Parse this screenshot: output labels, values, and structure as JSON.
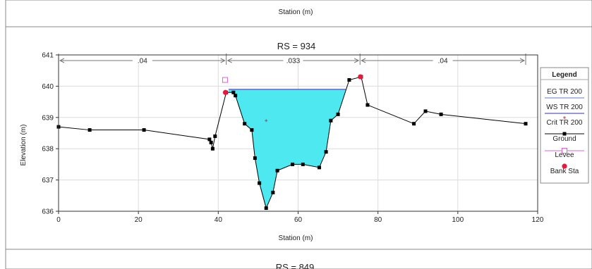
{
  "top_panel": {
    "xlabel": "Station (m)"
  },
  "chart_data": {
    "type": "line",
    "title": "RS = 934",
    "xlabel": "Station (m)",
    "ylabel": "Elevation (m)",
    "xlim": [
      0,
      120
    ],
    "ylim": [
      636,
      641
    ],
    "xticks": [
      0,
      20,
      40,
      60,
      80,
      100,
      120
    ],
    "yticks": [
      636,
      637,
      638,
      639,
      640,
      641
    ],
    "grid": true,
    "legend_position": "right",
    "manning_n": [
      {
        "label": ".04",
        "from": 0,
        "to": 42
      },
      {
        "label": ".033",
        "from": 42,
        "to": 75.5
      },
      {
        "label": ".04",
        "from": 75.5,
        "to": 117
      }
    ],
    "ground": {
      "name": "Ground",
      "x": [
        0,
        7.8,
        21.4,
        37.8,
        38.2,
        38.6,
        39.2,
        42,
        43.8,
        44.3,
        46.6,
        48.4,
        49.2,
        50.3,
        52,
        53.7,
        54.8,
        58.6,
        61.2,
        65.3,
        67,
        68.2,
        70,
        72.8,
        75.8,
        77.4,
        89,
        91.9,
        95.8,
        117
      ],
      "y": [
        638.7,
        638.6,
        638.6,
        638.3,
        638.2,
        638,
        638.4,
        639.8,
        639.8,
        639.7,
        638.8,
        638.6,
        637.7,
        636.9,
        636.1,
        636.6,
        637.3,
        637.5,
        637.5,
        637.4,
        637.9,
        638.9,
        639.1,
        640.2,
        640.3,
        639.4,
        638.8,
        639.2,
        639.1,
        638.8
      ]
    },
    "water_surface": {
      "name": "WS TR 200",
      "elevation": 639.9,
      "x_left": 42.6,
      "x_right": 71.9
    },
    "critical_depth": {
      "name": "Crit TR 200",
      "x": 52,
      "y": 638.9
    },
    "levee": {
      "name": "Levee",
      "x": 41.7,
      "y": 640.2
    },
    "bank_stations": {
      "name": "Bank Sta",
      "x": [
        41.8,
        75.6
      ],
      "y": [
        639.8,
        640.3
      ]
    },
    "legend": {
      "title": "Legend",
      "entries": [
        "EG TR 200",
        "WS TR 200",
        "Crit TR 200",
        "Ground",
        "Levee",
        "Bank Sta"
      ]
    },
    "colors": {
      "ground": "#000000",
      "water_fill": "#4de8f0",
      "ws_line": "#2f2fbf",
      "eg_line": "#5a7bd6",
      "crit": "#d43a3a",
      "levee": "#e060d0",
      "bank": "#e8173c",
      "grid": "#dcdcdc"
    }
  },
  "bottom_panel": {
    "title": "RS = 849"
  }
}
